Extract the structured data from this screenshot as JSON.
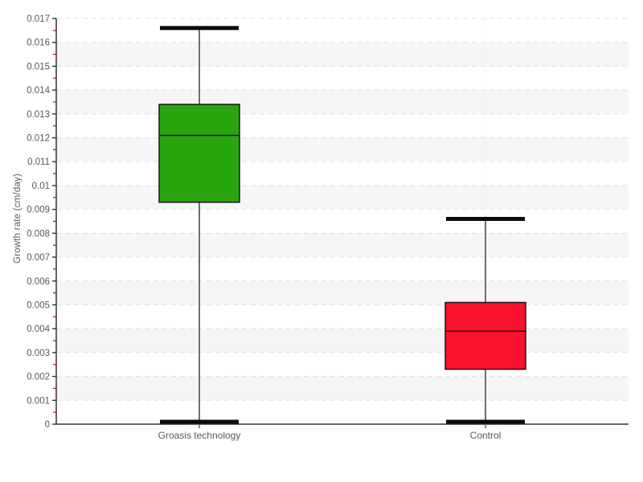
{
  "chart_data": {
    "type": "boxplot",
    "title": "",
    "xlabel": "",
    "ylabel": "Growth rate (cm/day)",
    "categories": [
      "Groasis technology",
      "Control"
    ],
    "series": [
      {
        "name": "Groasis technology",
        "color": "#28a50f",
        "whisker_low": 0.0001,
        "q1": 0.0093,
        "median": 0.0121,
        "q3": 0.0134,
        "whisker_high": 0.0166
      },
      {
        "name": "Control",
        "color": "#f8112b",
        "whisker_low": 0.0001,
        "q1": 0.0023,
        "median": 0.0039,
        "q3": 0.0051,
        "whisker_high": 0.0086
      }
    ],
    "ylim": [
      0,
      0.017
    ],
    "y_major_step": 0.001,
    "y_minor_step": 0.0005,
    "grid": "horizontal dashed gridlines with alternating shaded bands; faint vertical dashed line at each category",
    "legend": "none"
  },
  "colors": {
    "background": "#ffffff",
    "band": "#f6f6f7",
    "gridline": "#e0e0e0",
    "vgridline": "#ececec",
    "axis": "#333333",
    "minor_tick": "#dd0000",
    "text": "#55585c",
    "whisker_line": "#707070",
    "whisker_cap": "#0a0a0a",
    "box_border": "#181818"
  }
}
